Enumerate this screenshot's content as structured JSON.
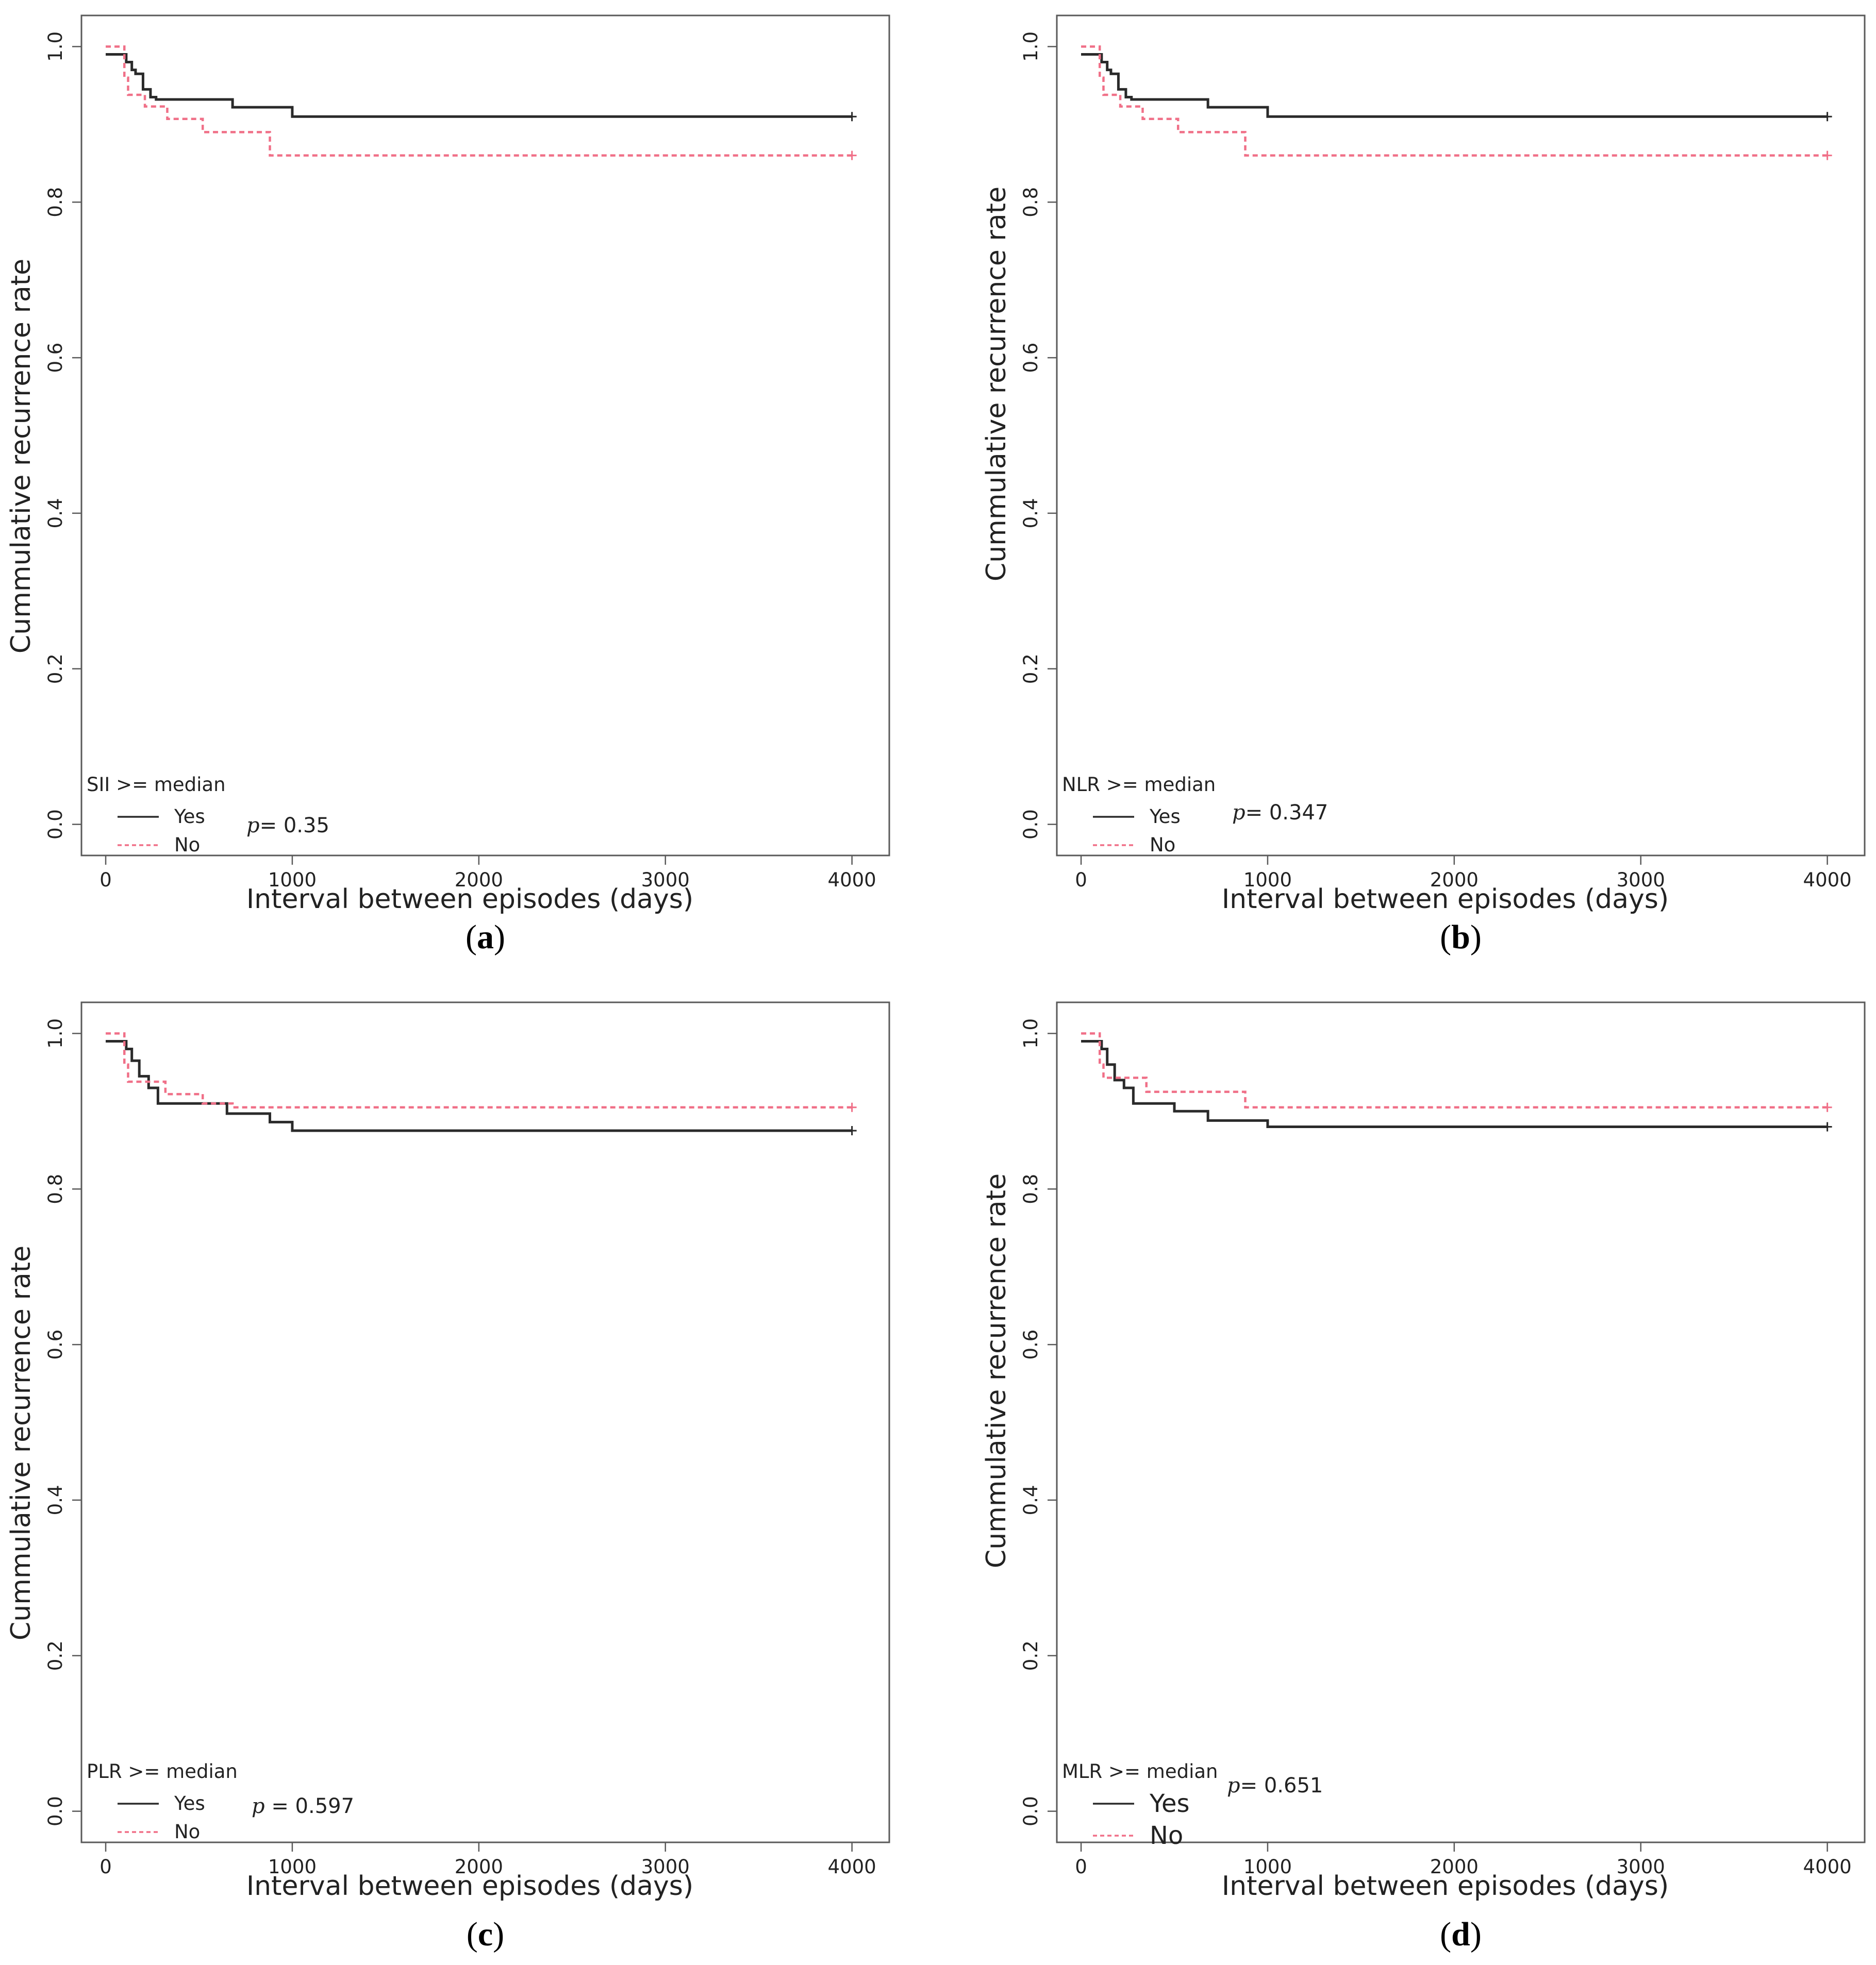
{
  "chart_data": [
    {
      "type": "line",
      "panel": "a",
      "panel_label": "(a)",
      "xlabel": "Interval between episodes (days)",
      "ylabel": "Cummulative recurrence rate",
      "xlim": [
        -130,
        4200
      ],
      "ylim": [
        -0.04,
        1.04
      ],
      "xticks": [
        0,
        1000,
        2000,
        3000,
        4000
      ],
      "yticks": [
        0.0,
        0.2,
        0.4,
        0.6,
        0.8,
        1.0
      ],
      "legend_title": "SII >= median",
      "legend_large": false,
      "p_value_label": "p",
      "p_value_text": "= 0.35",
      "series": [
        {
          "name": "Yes",
          "style": "solid",
          "color": "#2a2a2a",
          "x": [
            0,
            110,
            140,
            160,
            200,
            240,
            270,
            680,
            1000,
            4000
          ],
          "y": [
            0.99,
            0.98,
            0.97,
            0.965,
            0.945,
            0.935,
            0.932,
            0.922,
            0.91,
            0.91
          ]
        },
        {
          "name": "No",
          "style": "dashed",
          "color": "#f07088",
          "x": [
            0,
            100,
            120,
            210,
            330,
            520,
            880,
            4000
          ],
          "y": [
            1.0,
            0.96,
            0.938,
            0.923,
            0.907,
            0.89,
            0.86,
            0.86
          ]
        }
      ]
    },
    {
      "type": "line",
      "panel": "b",
      "panel_label": "(b)",
      "xlabel": "Interval between episodes (days)",
      "ylabel": "Cummulative recurrence rate",
      "xlim": [
        -130,
        4200
      ],
      "ylim": [
        -0.04,
        1.04
      ],
      "xticks": [
        0,
        1000,
        2000,
        3000,
        4000
      ],
      "yticks": [
        0.0,
        0.2,
        0.4,
        0.6,
        0.8,
        1.0
      ],
      "legend_title": "NLR >= median",
      "legend_large": false,
      "p_value_label": "p",
      "p_value_text": "= 0.347",
      "series": [
        {
          "name": "Yes",
          "style": "solid",
          "color": "#2a2a2a",
          "x": [
            0,
            110,
            140,
            160,
            200,
            240,
            270,
            680,
            1000,
            4000
          ],
          "y": [
            0.99,
            0.98,
            0.97,
            0.965,
            0.945,
            0.935,
            0.932,
            0.922,
            0.91,
            0.91
          ]
        },
        {
          "name": "No",
          "style": "dashed",
          "color": "#f07088",
          "x": [
            0,
            100,
            120,
            210,
            330,
            520,
            880,
            4000
          ],
          "y": [
            1.0,
            0.96,
            0.938,
            0.923,
            0.907,
            0.89,
            0.86,
            0.86
          ]
        }
      ]
    },
    {
      "type": "line",
      "panel": "c",
      "panel_label": "(c)",
      "xlabel": "Interval between episodes (days)",
      "ylabel": "Cummulative recurrence rate",
      "xlim": [
        -130,
        4200
      ],
      "ylim": [
        -0.04,
        1.04
      ],
      "xticks": [
        0,
        1000,
        2000,
        3000,
        4000
      ],
      "yticks": [
        0.0,
        0.2,
        0.4,
        0.6,
        0.8,
        1.0
      ],
      "legend_title": "PLR >= median",
      "legend_large": false,
      "p_value_label": "p",
      "p_value_text": " = 0.597",
      "series": [
        {
          "name": "Yes",
          "style": "solid",
          "color": "#2a2a2a",
          "x": [
            0,
            110,
            140,
            180,
            230,
            280,
            650,
            880,
            1000,
            4000
          ],
          "y": [
            0.99,
            0.98,
            0.965,
            0.945,
            0.93,
            0.91,
            0.897,
            0.886,
            0.875,
            0.875
          ]
        },
        {
          "name": "No",
          "style": "dashed",
          "color": "#f07088",
          "x": [
            0,
            100,
            120,
            320,
            520,
            680,
            4000
          ],
          "y": [
            1.0,
            0.96,
            0.938,
            0.922,
            0.91,
            0.905,
            0.905
          ]
        }
      ]
    },
    {
      "type": "line",
      "panel": "d",
      "panel_label": "(d)",
      "xlabel": "Interval between episodes (days)",
      "ylabel": "Cummulative recurrence rate",
      "xlim": [
        -130,
        4200
      ],
      "ylim": [
        -0.04,
        1.04
      ],
      "xticks": [
        0,
        1000,
        2000,
        3000,
        4000
      ],
      "yticks": [
        0.0,
        0.2,
        0.4,
        0.6,
        0.8,
        1.0
      ],
      "legend_title": "MLR >= median",
      "legend_large": true,
      "p_value_label": "p",
      "p_value_text": "= 0.651",
      "series": [
        {
          "name": "Yes",
          "style": "solid",
          "color": "#2a2a2a",
          "x": [
            0,
            110,
            140,
            180,
            230,
            280,
            500,
            680,
            1000,
            4000
          ],
          "y": [
            0.99,
            0.98,
            0.96,
            0.94,
            0.93,
            0.91,
            0.9,
            0.888,
            0.88,
            0.88
          ]
        },
        {
          "name": "No",
          "style": "dashed",
          "color": "#f07088",
          "x": [
            0,
            100,
            120,
            350,
            880,
            4000
          ],
          "y": [
            1.0,
            0.96,
            0.943,
            0.925,
            0.905,
            0.905
          ]
        }
      ]
    }
  ]
}
